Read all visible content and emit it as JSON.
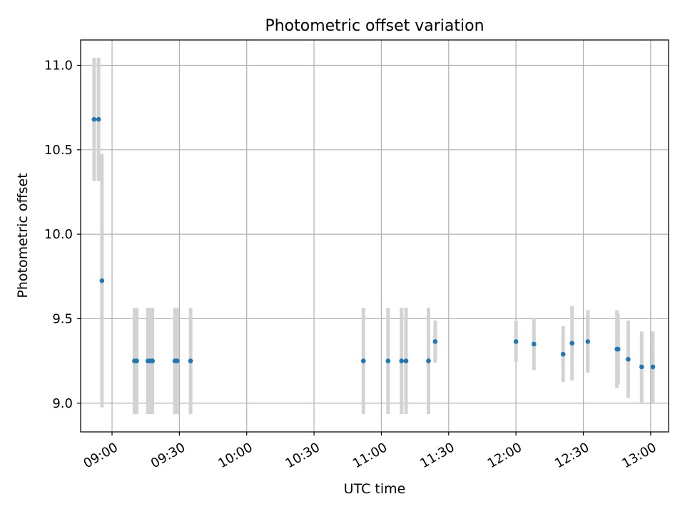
{
  "chart_data": {
    "type": "scatter",
    "title": "Photometric offset variation",
    "xlabel": "UTC time",
    "ylabel": "Photometric offset",
    "xlim": [
      "08:46",
      "13:08"
    ],
    "ylim": [
      8.83,
      11.15
    ],
    "x_ticks": [
      "09:00",
      "09:30",
      "10:00",
      "10:30",
      "11:00",
      "11:30",
      "12:00",
      "12:30",
      "13:00"
    ],
    "y_ticks": [
      "9.0",
      "9.5",
      "10.0",
      "10.5",
      "11.0"
    ],
    "grid": true,
    "marker_color": "#1f77b4",
    "errorbar_color": "#d3d3d3",
    "points": [
      {
        "t": "08:52",
        "y": 10.68,
        "err": 0.365
      },
      {
        "t": "08:54",
        "y": 10.68,
        "err": 0.365
      },
      {
        "t": "08:55:30",
        "y": 9.725,
        "err": 0.75
      },
      {
        "t": "09:10",
        "y": 9.25,
        "err": 0.315
      },
      {
        "t": "09:11",
        "y": 9.25,
        "err": 0.315
      },
      {
        "t": "09:16",
        "y": 9.25,
        "err": 0.315
      },
      {
        "t": "09:17",
        "y": 9.25,
        "err": 0.315
      },
      {
        "t": "09:18",
        "y": 9.25,
        "err": 0.315
      },
      {
        "t": "09:28",
        "y": 9.25,
        "err": 0.315
      },
      {
        "t": "09:29",
        "y": 9.25,
        "err": 0.315
      },
      {
        "t": "09:35",
        "y": 9.25,
        "err": 0.315
      },
      {
        "t": "10:52",
        "y": 9.25,
        "err": 0.315
      },
      {
        "t": "11:03",
        "y": 9.25,
        "err": 0.315
      },
      {
        "t": "11:09",
        "y": 9.25,
        "err": 0.315
      },
      {
        "t": "11:11",
        "y": 9.25,
        "err": 0.315
      },
      {
        "t": "11:21",
        "y": 9.25,
        "err": 0.315
      },
      {
        "t": "11:24",
        "y": 9.365,
        "err": 0.125
      },
      {
        "t": "12:00",
        "y": 9.365,
        "err": 0.12
      },
      {
        "t": "12:08",
        "y": 9.35,
        "err": 0.155
      },
      {
        "t": "12:21",
        "y": 9.29,
        "err": 0.165
      },
      {
        "t": "12:25",
        "y": 9.355,
        "err": 0.22
      },
      {
        "t": "12:32",
        "y": 9.365,
        "err": 0.185
      },
      {
        "t": "12:45",
        "y": 9.32,
        "err": 0.23
      },
      {
        "t": "12:45:30",
        "y": 9.32,
        "err": 0.21
      },
      {
        "t": "12:50",
        "y": 9.26,
        "err": 0.23
      },
      {
        "t": "12:56",
        "y": 9.215,
        "err": 0.21
      },
      {
        "t": "13:01",
        "y": 9.215,
        "err": 0.21
      }
    ]
  }
}
